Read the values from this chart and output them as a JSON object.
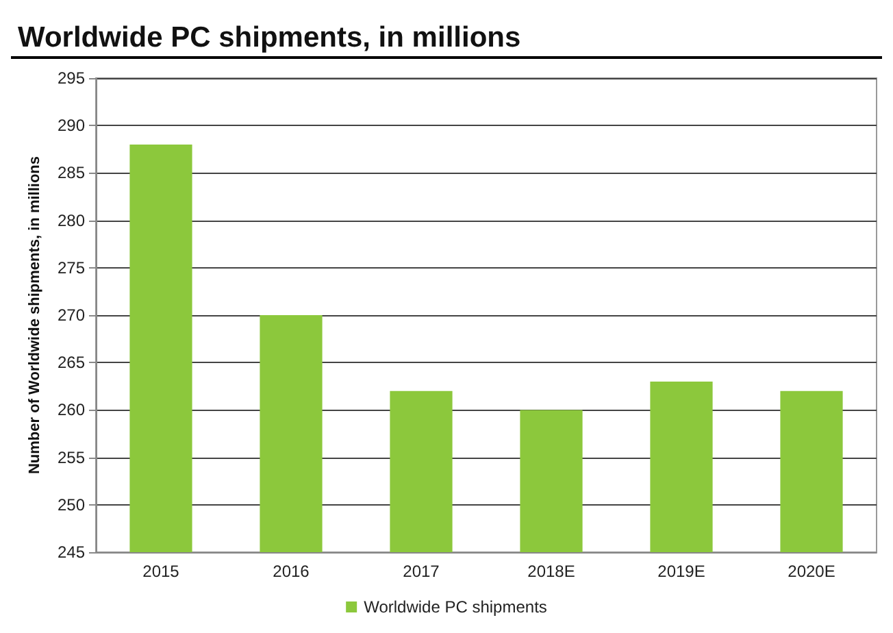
{
  "chart_data": {
    "type": "bar",
    "title": "Worldwide PC shipments, in millions",
    "ylabel": "Number of Worldwide shipments, in millions",
    "categories": [
      "2015",
      "2016",
      "2017",
      "2018E",
      "2019E",
      "2020E"
    ],
    "series": [
      {
        "name": "Worldwide PC shipments",
        "color": "#8cc83c",
        "values": [
          288,
          270,
          262,
          260,
          263,
          262
        ]
      }
    ],
    "ylim": [
      245,
      295
    ],
    "yticks": [
      245,
      250,
      255,
      260,
      265,
      270,
      275,
      280,
      285,
      290,
      295
    ],
    "grid": "y",
    "legend": "bottom"
  }
}
